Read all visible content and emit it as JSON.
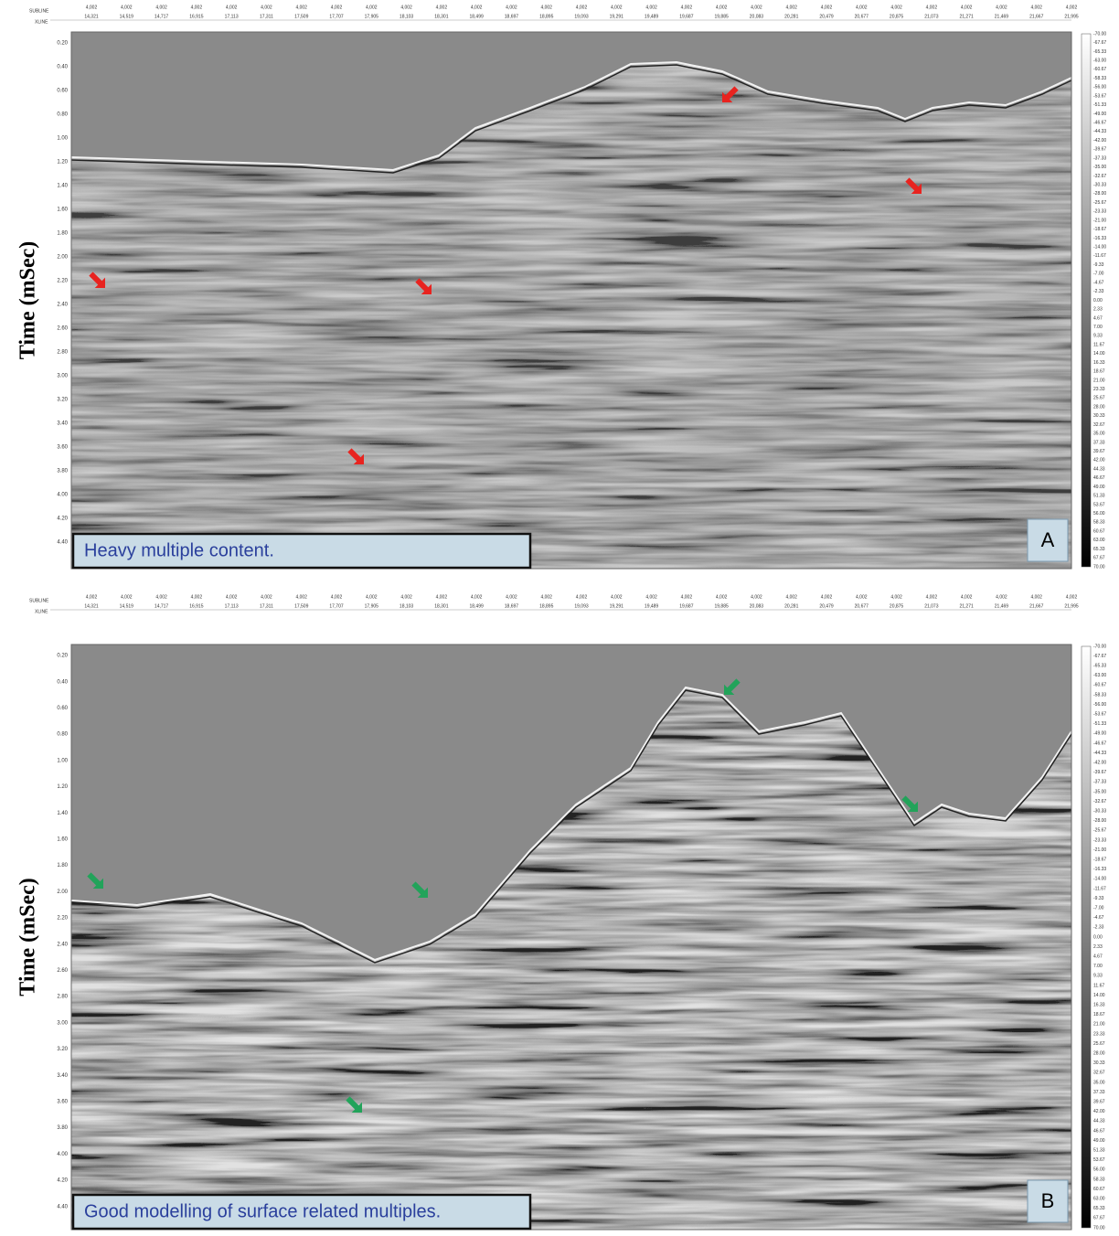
{
  "header": {
    "subline_label": "SUBLINE",
    "xline_label": "XLINE",
    "inline": "4,002",
    "xlines": [
      "14,321",
      "14,519",
      "14,717",
      "16,915",
      "17,113",
      "17,311",
      "17,509",
      "17,707",
      "17,905",
      "18,103",
      "18,301",
      "18,499",
      "18,697",
      "18,895",
      "19,093",
      "19,291",
      "19,489",
      "19,687",
      "19,885",
      "20,083",
      "20,281",
      "20,479",
      "20,677",
      "20,875",
      "21,073",
      "21,271",
      "21,469",
      "21,667",
      "21,995"
    ]
  },
  "y_axis_label": "Time (mSec)",
  "time_ticks": [
    "0.20",
    "0.40",
    "0.60",
    "0.80",
    "1.00",
    "1.20",
    "1.40",
    "1.60",
    "1.80",
    "2.00",
    "2.20",
    "2.40",
    "2.60",
    "2.80",
    "3.00",
    "3.20",
    "3.40",
    "3.60",
    "3.80",
    "4.00",
    "4.20",
    "4.40"
  ],
  "colorbar_ticks": [
    "-70.00",
    "-67.67",
    "-65.33",
    "-63.00",
    "-60.67",
    "-58.33",
    "-56.00",
    "-53.67",
    "-51.33",
    "-49.00",
    "-46.67",
    "-44.33",
    "-42.00",
    "-39.67",
    "-37.33",
    "-35.00",
    "-32.67",
    "-30.33",
    "-28.00",
    "-25.67",
    "-23.33",
    "-21.00",
    "-18.67",
    "-16.33",
    "-14.00",
    "-11.67",
    "-9.33",
    "-7.00",
    "-4.67",
    "-2.33",
    "0.00",
    "2.33",
    "4.67",
    "7.00",
    "9.33",
    "11.67",
    "14.00",
    "16.33",
    "18.67",
    "21.00",
    "23.33",
    "25.67",
    "28.00",
    "30.33",
    "32.67",
    "35.00",
    "37.33",
    "39.67",
    "42.00",
    "44.33",
    "46.67",
    "49.00",
    "51.33",
    "53.67",
    "56.00",
    "58.33",
    "60.67",
    "63.00",
    "65.33",
    "67.67",
    "70.00"
  ],
  "panels": [
    {
      "caption": "Heavy  multiple content.",
      "letter": "A"
    },
    {
      "caption": "Good modelling of surface related multiples.",
      "letter": "B"
    }
  ]
}
